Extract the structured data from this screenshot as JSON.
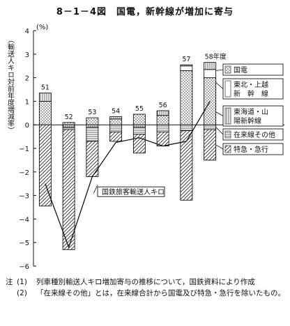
{
  "title": "8－1－4図　国電，新幹線が増加に寄与",
  "chart_data": {
    "type": "bar",
    "ylabel": "（輸送人キロ対前年度増減率）",
    "yunit": "(%)",
    "ylim": [
      -6,
      4
    ],
    "yticks": [
      "4",
      "3",
      "2",
      "1",
      "0",
      "−1",
      "−2",
      "−3",
      "−4",
      "−5",
      "−6"
    ],
    "x_year_suffix": "年度",
    "categories": [
      "51",
      "52",
      "53",
      "54",
      "55",
      "56",
      "57",
      "58"
    ],
    "series": [
      {
        "name": "国電",
        "values": [
          1.0,
          0.1,
          0.3,
          0.25,
          0.45,
          0.4,
          2.3,
          2.0
        ]
      },
      {
        "name": "東北・上越新幹線",
        "values": [
          0,
          0,
          0,
          0,
          0,
          0,
          0.2,
          0.35
        ]
      },
      {
        "name": "東海道・山陽新幹線",
        "values": [
          0.35,
          -0.1,
          -0.1,
          0.1,
          -0.1,
          0.2,
          0.05,
          0.3
        ]
      },
      {
        "name": "在来線その他",
        "values": [
          0,
          -0.1,
          -0.6,
          -0.3,
          -0.3,
          -0.3,
          -0.25,
          -0.2
        ]
      },
      {
        "name": "特急・急行",
        "values": [
          -3.45,
          -5.1,
          -1.5,
          -0.4,
          -0.8,
          -0.6,
          -2.95,
          -1.3
        ]
      }
    ],
    "line": {
      "name": "国鉄旅客輸送人キロ",
      "values": [
        -2.5,
        -5.2,
        -2.2,
        -0.75,
        -0.55,
        -0.9,
        -0.7,
        1.0
      ]
    },
    "legend": [
      "国電",
      "東北・上越新幹線",
      "東海道・山陽新幹線",
      "在来線その他",
      "特急・急行"
    ],
    "annotation": "国鉄旅客輸送人キロ"
  },
  "notes": [
    {
      "mark": "注",
      "num": "(1)",
      "text": "列車種別輸送人キロ増加寄与の推移について，国鉄資料により作成"
    },
    {
      "mark": "",
      "num": "(2)",
      "text": "「在来線その他」とは，在来線合計から国電及び特急・急行を除いたもの。"
    }
  ]
}
